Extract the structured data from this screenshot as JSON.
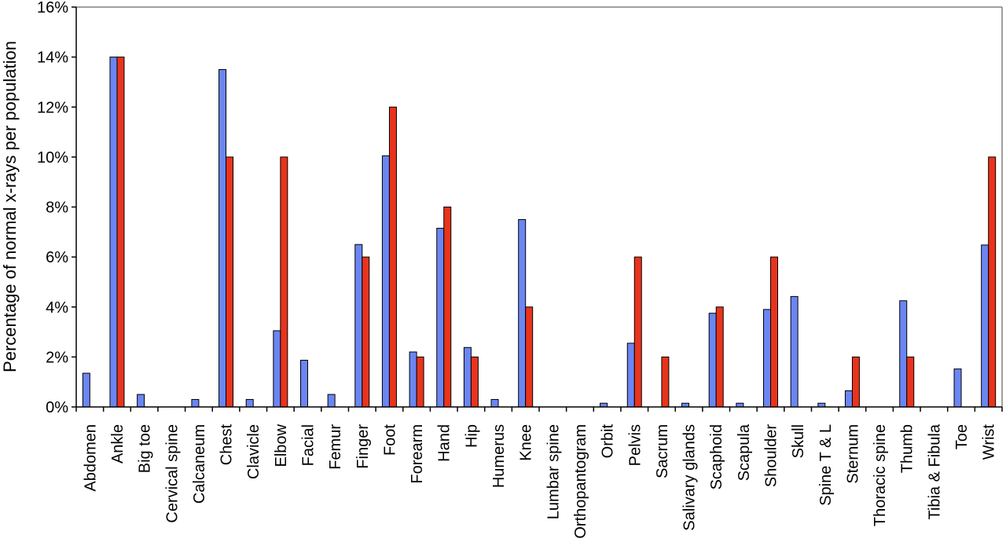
{
  "chart_data": {
    "type": "bar",
    "ylabel": "Percentage of normal x-rays per population",
    "xlabel": "",
    "ylim": [
      0,
      16
    ],
    "y_ticks": [
      "0%",
      "2%",
      "4%",
      "6%",
      "8%",
      "10%",
      "12%",
      "14%",
      "16%"
    ],
    "y_tick_values": [
      0,
      2,
      4,
      6,
      8,
      10,
      12,
      14,
      16
    ],
    "grid": false,
    "legend": "none",
    "colors": {
      "series1": "#6b86f2",
      "series2": "#e8341c",
      "axis": "#000000",
      "plot_border": "#808080"
    },
    "categories": [
      "Abdomen",
      "Ankle",
      "Big toe",
      "Cervical spine",
      "Calcaneum",
      "Chest",
      "Clavicle",
      "Elbow",
      "Facial",
      "Femur",
      "Finger",
      "Foot",
      "Forearm",
      "Hand",
      "Hip",
      "Humerus",
      "Knee",
      "Lumbar spine",
      "Orthopantogram",
      "Orbit",
      "Pelvis",
      "Sacrum",
      "Salivary glands",
      "Scaphoid",
      "Scapula",
      "Shoulder",
      "Skull",
      "Spine T & L",
      "Sternum",
      "Thoracic spine",
      "Thumb",
      "Tibia & Fibula",
      "Toe",
      "Wrist"
    ],
    "series": [
      {
        "values": [
          1.35,
          14,
          0.5,
          0,
          0.3,
          13.5,
          0.3,
          3.05,
          1.87,
          0.5,
          6.5,
          10.05,
          2.2,
          7.15,
          2.38,
          0.3,
          7.5,
          0,
          0,
          0.15,
          2.55,
          0,
          0.15,
          3.75,
          0.15,
          3.9,
          4.42,
          0.15,
          0.65,
          0,
          4.25,
          0,
          1.52,
          6.48
        ]
      },
      {
        "values": [
          0,
          14,
          0,
          0,
          0,
          10,
          0,
          10,
          0,
          0,
          6,
          12,
          2,
          8,
          2,
          0,
          4,
          0,
          0,
          0,
          6,
          2,
          0,
          4,
          0,
          6,
          0,
          0,
          2,
          0,
          2,
          0,
          0,
          10
        ]
      }
    ]
  }
}
